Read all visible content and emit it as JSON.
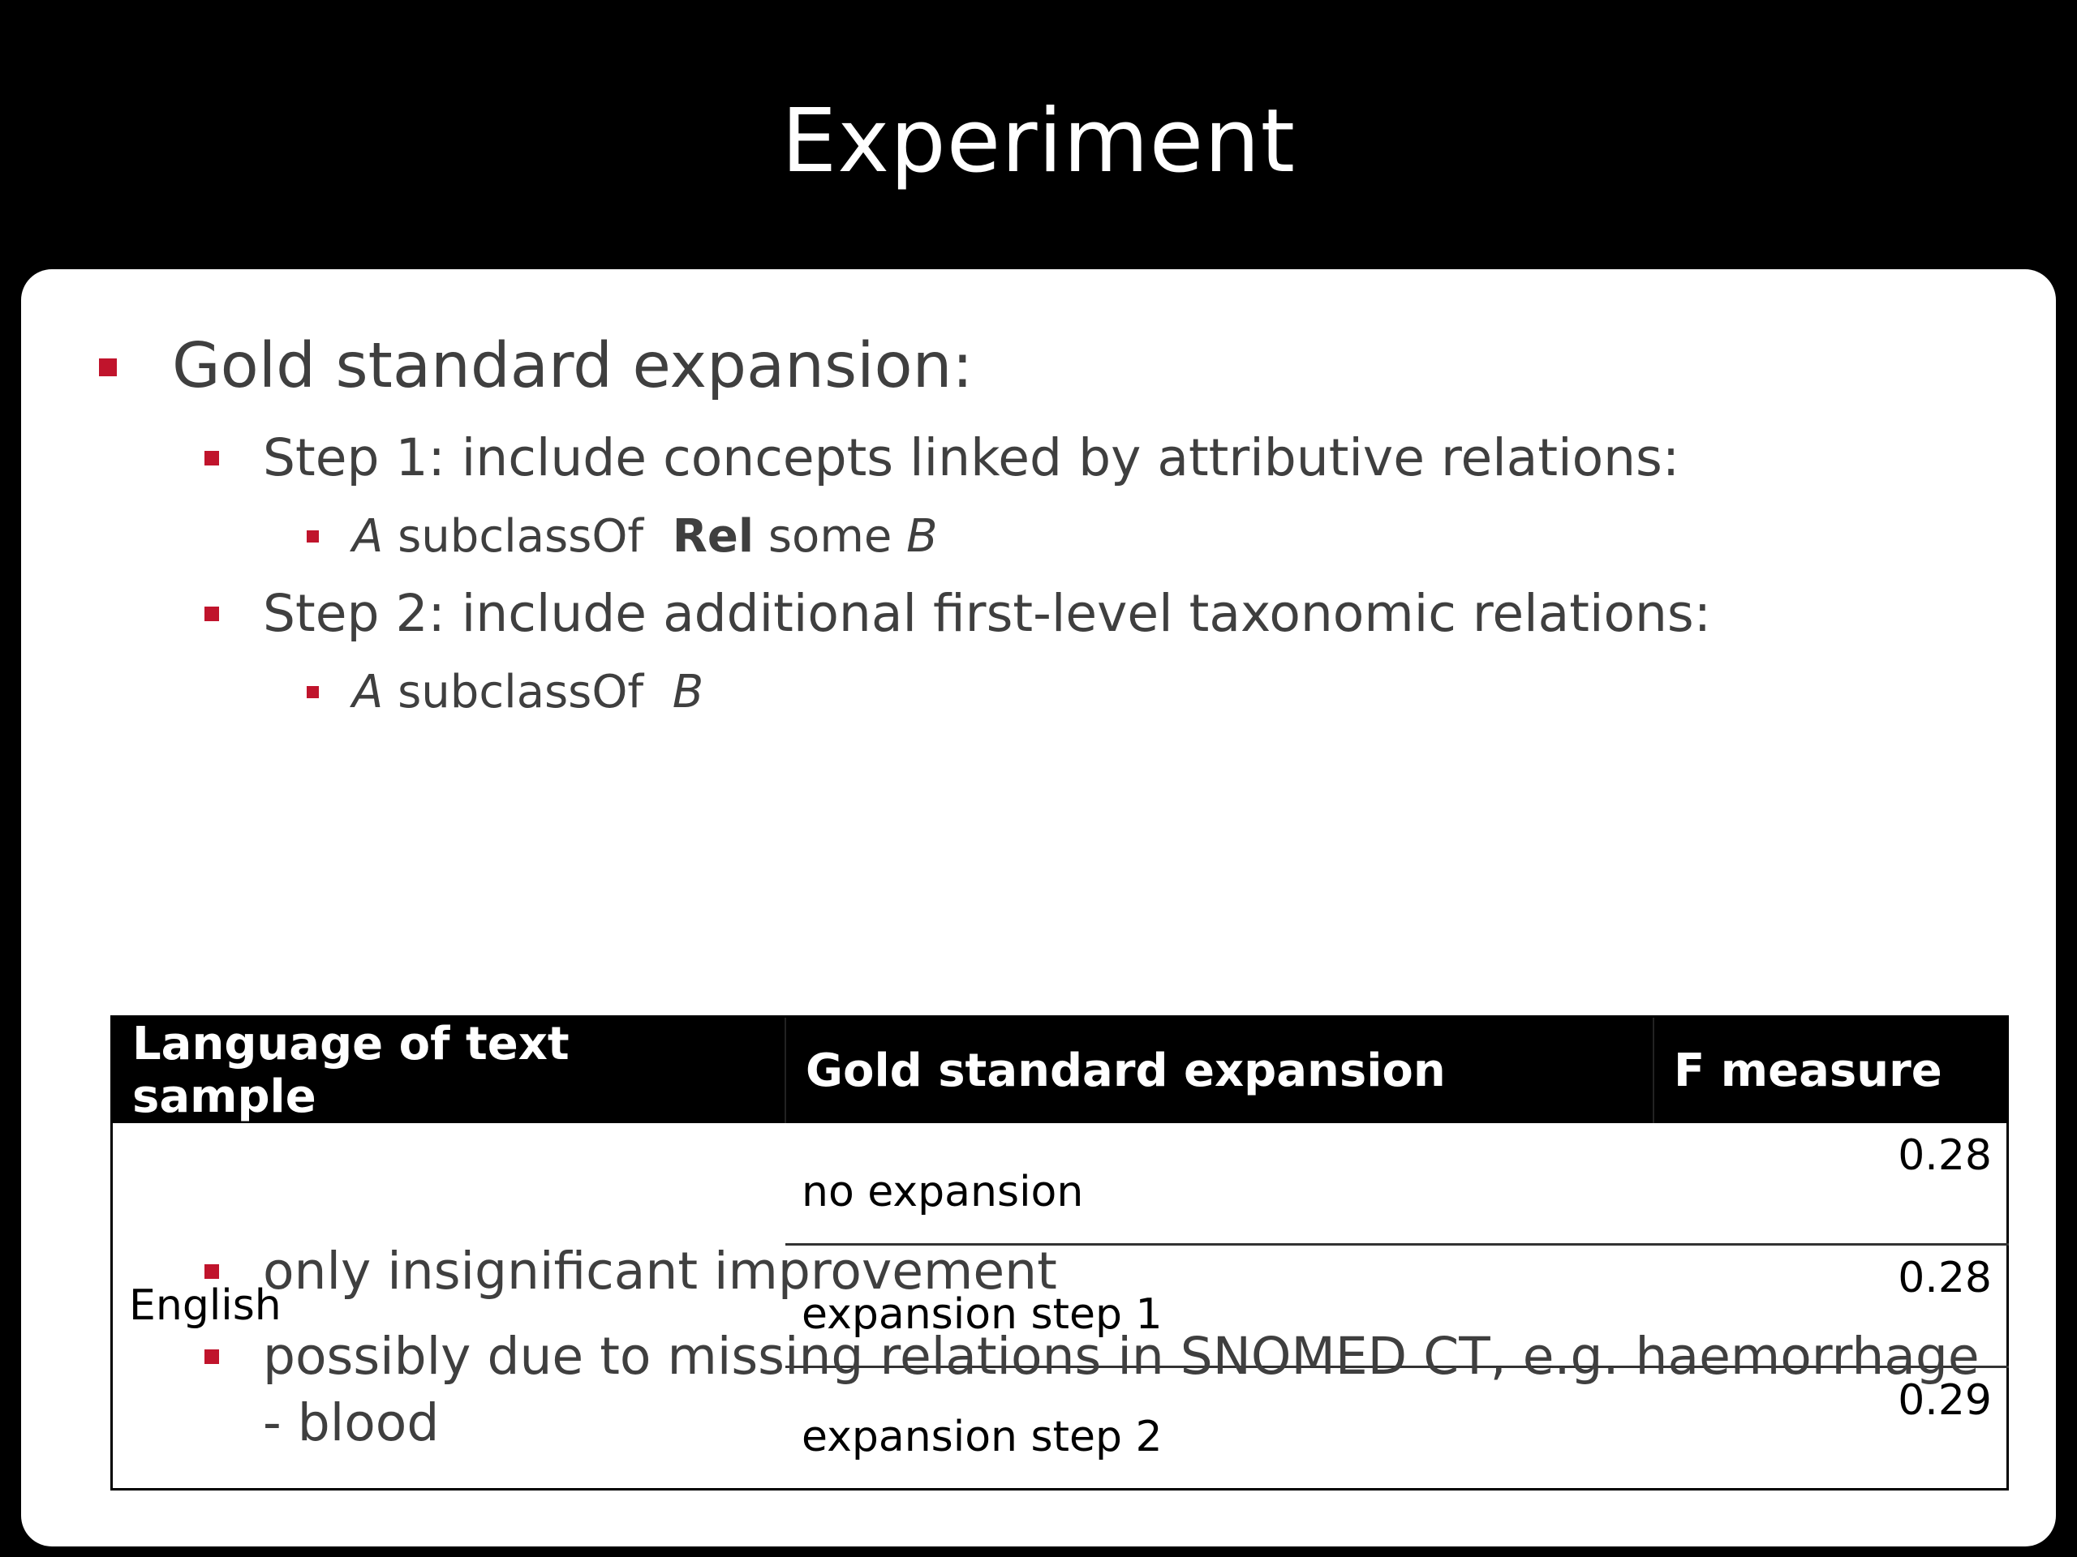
{
  "slide": {
    "title": "Experiment"
  },
  "bullets": {
    "gold_heading": "Gold standard expansion:",
    "step1": "Step 1: include concepts linked by attributive relations:",
    "step1_formula": {
      "a": "A",
      "subclass": "subclassOf",
      "rel": "Rel",
      "some": "some",
      "b": "B"
    },
    "step2": "Step 2: include additional first-level taxonomic relations:",
    "step2_formula": {
      "a": "A",
      "subclass": "subclassOf",
      "b": "B"
    },
    "conclusion1": "only insignificant improvement",
    "conclusion2_line1": "possibly due to missing relations in SNOMED CT, e.g. haemorrhage",
    "conclusion2_line2": "- blood"
  },
  "table": {
    "headers": [
      "Language of text sample",
      "Gold standard expansion",
      "F measure"
    ],
    "language": "English",
    "rows": [
      {
        "expansion": "no expansion",
        "f": "0.28"
      },
      {
        "expansion": "expansion step 1",
        "f": "0.28"
      },
      {
        "expansion": "expansion step 2",
        "f": "0.29"
      }
    ]
  },
  "colors": {
    "bullet_marker": "#c0142c",
    "background": "#000000",
    "panel": "#ffffff",
    "text": "#3f3f3f"
  }
}
